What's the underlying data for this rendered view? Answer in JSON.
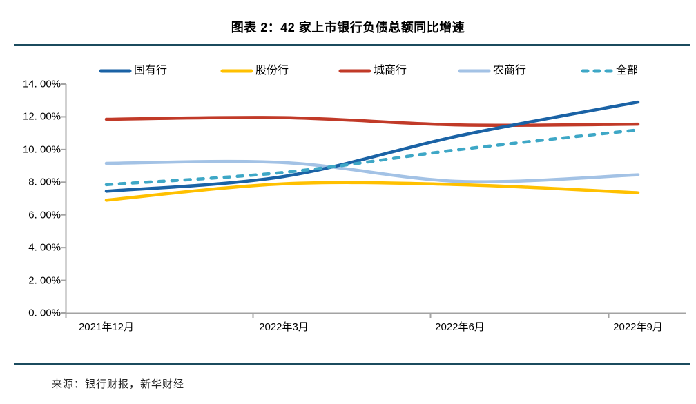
{
  "header": {
    "title": "图表 2：42 家上市银行负债总额同比增速"
  },
  "footer": {
    "source": "来源：银行财报，新华财经"
  },
  "colors": {
    "divider": "#1B4B5E",
    "axis": "#A3A3A3",
    "series_guoyouhang": "#1A62A5",
    "series_gufenhang": "#FFC000",
    "series_chengshanghang": "#C13A28",
    "series_nongshanghang": "#A3C2E5",
    "series_quanbu": "#3EA7C6"
  },
  "chart_data": {
    "type": "line",
    "title": "图表 2：42 家上市银行负债总额同比增速",
    "categories": [
      "2021年12月",
      "2022年3月",
      "2022年6月",
      "2022年9月"
    ],
    "series": [
      {
        "name": "国有行",
        "color": "#1A62A5",
        "dashed": false,
        "values": [
          7.45,
          8.35,
          10.85,
          12.9
        ]
      },
      {
        "name": "股份行",
        "color": "#FFC000",
        "dashed": false,
        "values": [
          6.9,
          7.9,
          7.85,
          7.35
        ]
      },
      {
        "name": "城商行",
        "color": "#C13A28",
        "dashed": false,
        "values": [
          11.85,
          11.95,
          11.5,
          11.55
        ]
      },
      {
        "name": "农商行",
        "color": "#A3C2E5",
        "dashed": false,
        "values": [
          9.15,
          9.2,
          8.05,
          8.45
        ]
      },
      {
        "name": "全部",
        "color": "#3EA7C6",
        "dashed": true,
        "values": [
          7.85,
          8.6,
          10.0,
          11.2
        ]
      }
    ],
    "xlabel": "",
    "ylabel": "",
    "ylim": [
      0,
      14
    ],
    "ytick_step": 2,
    "ytick_labels": [
      "0. 00%",
      "2. 00%",
      "4. 00%",
      "6. 00%",
      "8. 00%",
      "10. 00%",
      "12. 00%",
      "14. 00%"
    ],
    "grid": false,
    "legend_position": "top",
    "line_smoothing": true
  }
}
